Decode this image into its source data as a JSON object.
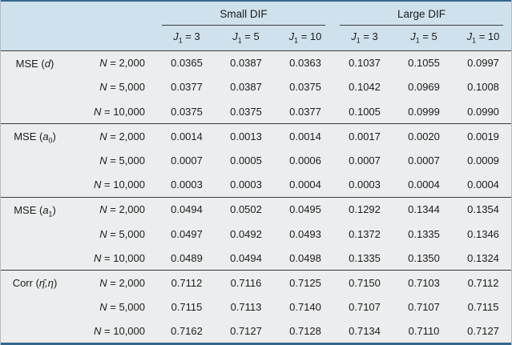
{
  "colors": {
    "header_bg": "#cfe1ed",
    "body_bg": "#ecedee",
    "rule": "#3b3b3b",
    "frame": "#38688c",
    "side_border": "#b7bcbf",
    "text": "#1c1c1c"
  },
  "chart_data": {
    "type": "table",
    "column_groups": [
      {
        "label": "Small DIF",
        "span": 3
      },
      {
        "label": "Large DIF",
        "span": 3
      }
    ],
    "columns": [
      "J1 = 3",
      "J1 = 5",
      "J1 = 10",
      "J1 = 3",
      "J1 = 5",
      "J1 = 10"
    ],
    "column_parts": [
      {
        "sym": "J",
        "sub": "1",
        "rest": " = 3"
      },
      {
        "sym": "J",
        "sub": "1",
        "rest": " = 5"
      },
      {
        "sym": "J",
        "sub": "1",
        "rest": " = 10"
      },
      {
        "sym": "J",
        "sub": "1",
        "rest": " = 3"
      },
      {
        "sym": "J",
        "sub": "1",
        "rest": " = 5"
      },
      {
        "sym": "J",
        "sub": "1",
        "rest": " = 10"
      }
    ],
    "row_groups": [
      {
        "label": "MSE (d)",
        "parts": {
          "prefix": "MSE (",
          "sym": "d",
          "sub": "",
          "suffix": ")"
        },
        "rows": [
          {
            "label": "N = 2,000",
            "parts": {
              "sym": "N",
              "rest": " = 2,000"
            },
            "values": [
              "0.0365",
              "0.0387",
              "0.0363",
              "0.1037",
              "0.1055",
              "0.0997"
            ]
          },
          {
            "label": "N = 5,000",
            "parts": {
              "sym": "N",
              "rest": " = 5,000"
            },
            "values": [
              "0.0377",
              "0.0387",
              "0.0375",
              "0.1042",
              "0.0969",
              "0.1008"
            ]
          },
          {
            "label": "N = 10,000",
            "parts": {
              "sym": "N",
              "rest": " = 10,000"
            },
            "values": [
              "0.0375",
              "0.0375",
              "0.0377",
              "0.1005",
              "0.0999",
              "0.0990"
            ]
          }
        ]
      },
      {
        "label": "MSE (a0)",
        "parts": {
          "prefix": "MSE (",
          "sym": "a",
          "sub": "0",
          "suffix": ")"
        },
        "rows": [
          {
            "label": "N = 2,000",
            "parts": {
              "sym": "N",
              "rest": " = 2,000"
            },
            "values": [
              "0.0014",
              "0.0013",
              "0.0014",
              "0.0017",
              "0.0020",
              "0.0019"
            ]
          },
          {
            "label": "N = 5,000",
            "parts": {
              "sym": "N",
              "rest": " = 5,000"
            },
            "values": [
              "0.0007",
              "0.0005",
              "0.0006",
              "0.0007",
              "0.0007",
              "0.0009"
            ]
          },
          {
            "label": "N = 10,000",
            "parts": {
              "sym": "N",
              "rest": " = 10,000"
            },
            "values": [
              "0.0003",
              "0.0003",
              "0.0004",
              "0.0003",
              "0.0004",
              "0.0004"
            ]
          }
        ]
      },
      {
        "label": "MSE (a1)",
        "parts": {
          "prefix": "MSE (",
          "sym": "a",
          "sub": "1",
          "suffix": ")"
        },
        "rows": [
          {
            "label": "N = 2,000",
            "parts": {
              "sym": "N",
              "rest": " = 2,000"
            },
            "values": [
              "0.0494",
              "0.0502",
              "0.0495",
              "0.1292",
              "0.1344",
              "0.1354"
            ]
          },
          {
            "label": "N = 5,000",
            "parts": {
              "sym": "N",
              "rest": " = 5,000"
            },
            "values": [
              "0.0497",
              "0.0492",
              "0.0493",
              "0.1372",
              "0.1335",
              "0.1346"
            ]
          },
          {
            "label": "N = 10,000",
            "parts": {
              "sym": "N",
              "rest": " = 10,000"
            },
            "values": [
              "0.0489",
              "0.0494",
              "0.0498",
              "0.1335",
              "0.1350",
              "0.1324"
            ]
          }
        ]
      },
      {
        "label": "Corr (η̂,η)",
        "parts": {
          "prefix": "Corr (",
          "sym": "η̂,η",
          "sub": "",
          "suffix": ")"
        },
        "rows": [
          {
            "label": "N = 2,000",
            "parts": {
              "sym": "N",
              "rest": " = 2,000"
            },
            "values": [
              "0.7112",
              "0.7116",
              "0.7125",
              "0.7150",
              "0.7103",
              "0.7112"
            ]
          },
          {
            "label": "N = 5,000",
            "parts": {
              "sym": "N",
              "rest": " = 5,000"
            },
            "values": [
              "0.7115",
              "0.7113",
              "0.7140",
              "0.7107",
              "0.7107",
              "0.7115"
            ]
          },
          {
            "label": "N = 10,000",
            "parts": {
              "sym": "N",
              "rest": " = 10,000"
            },
            "values": [
              "0.7162",
              "0.7127",
              "0.7128",
              "0.7134",
              "0.7110",
              "0.7127"
            ]
          }
        ]
      }
    ]
  }
}
